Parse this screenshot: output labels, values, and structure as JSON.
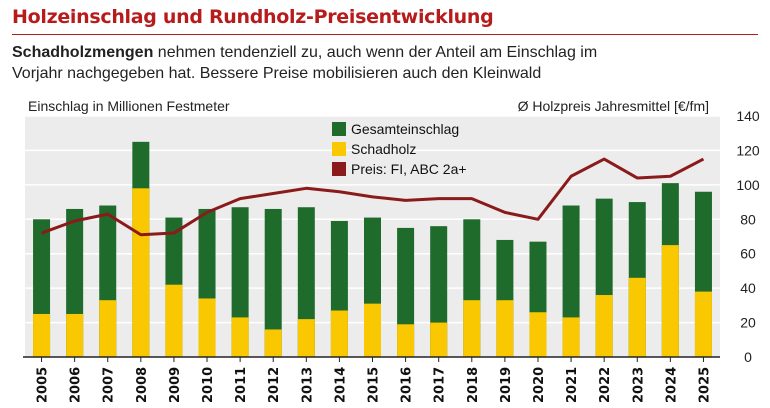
{
  "header": {
    "title": "Holzeinschlag und Rundholz-Preisentwicklung",
    "subtitle_bold": "Schadholzmengen",
    "subtitle_line1": " nehmen tendenziell zu, auch wenn der Anteil am Einschlag im",
    "subtitle_line2": "Vorjahr nachgegeben hat. Bessere Preise mobilisieren auch den Kleinwald"
  },
  "colors": {
    "total": "#1e6b2b",
    "damaged": "#f9c800",
    "price": "#8b1a1a",
    "plot_bg": "#ececec",
    "grid": "#ffffff"
  },
  "chart_data": {
    "type": "bar",
    "ylabel_left": "Einschlag in Millionen Festmeter",
    "ylabel_right": "Ø Holzpreis Jahresmittel [€/fm]",
    "right_axis": {
      "ylim": [
        0,
        140
      ],
      "ticks": [
        0,
        20,
        40,
        60,
        80,
        100,
        120,
        140
      ]
    },
    "legend": {
      "position": "top-center",
      "entries": [
        "Gesamteinschlag",
        "Schadholz",
        "Preis: FI, ABC 2a+"
      ]
    },
    "grid": true,
    "categories": [
      "2005",
      "2006",
      "2007",
      "2008",
      "2009",
      "2010",
      "2011",
      "2012",
      "2013",
      "2014",
      "2015",
      "2016",
      "2017",
      "2018",
      "2019",
      "2020",
      "2021",
      "2022",
      "2023",
      "2024",
      "2025"
    ],
    "series": [
      {
        "name": "Gesamteinschlag",
        "type": "bar",
        "values": [
          80,
          86,
          88,
          125,
          81,
          86,
          87,
          86,
          87,
          79,
          81,
          75,
          76,
          80,
          68,
          67,
          88,
          92,
          90,
          101,
          96
        ]
      },
      {
        "name": "Schadholz",
        "type": "bar",
        "values": [
          25,
          25,
          33,
          98,
          42,
          34,
          23,
          16,
          22,
          27,
          31,
          19,
          20,
          33,
          33,
          26,
          23,
          36,
          46,
          65,
          38
        ]
      },
      {
        "name": "Preis: FI, ABC 2a+",
        "type": "line",
        "values": [
          72,
          79,
          83,
          71,
          72,
          84,
          92,
          95,
          98,
          96,
          93,
          91,
          92,
          92,
          84,
          80,
          105,
          115,
          104,
          105,
          115
        ]
      }
    ]
  }
}
